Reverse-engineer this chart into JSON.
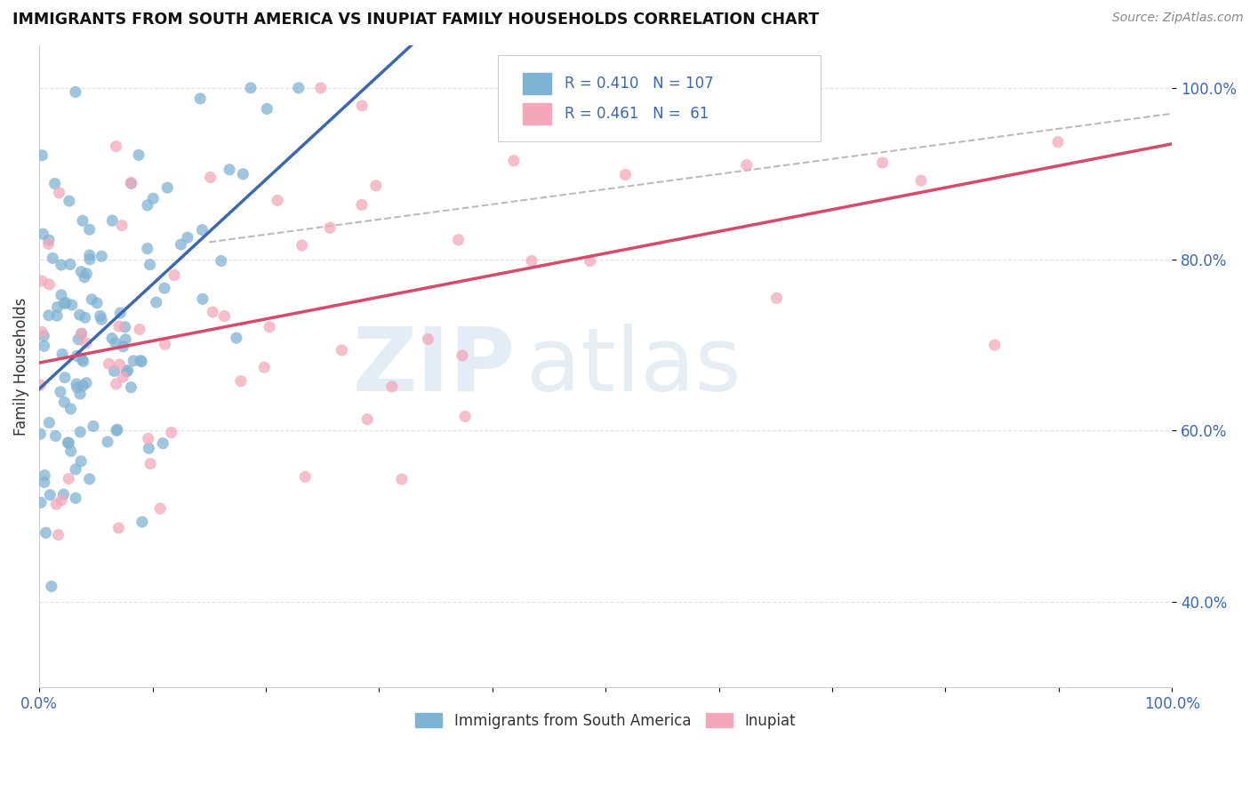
{
  "title": "IMMIGRANTS FROM SOUTH AMERICA VS INUPIAT FAMILY HOUSEHOLDS CORRELATION CHART",
  "source": "Source: ZipAtlas.com",
  "ylabel": "Family Households",
  "xlim": [
    0.0,
    1.0
  ],
  "ylim": [
    0.3,
    1.05
  ],
  "ytick_positions": [
    0.4,
    0.6,
    0.8,
    1.0
  ],
  "yticklabels": [
    "40.0%",
    "60.0%",
    "80.0%",
    "100.0%"
  ],
  "blue_color": "#7fb3d3",
  "pink_color": "#f4a7b9",
  "trend_blue": "#3a68b5",
  "trend_pink": "#d9496a",
  "dashed_gray": "#aaaaaa",
  "R_blue": 0.41,
  "N_blue": 107,
  "R_pink": 0.461,
  "N_pink": 61,
  "legend_label_blue": "Immigrants from South America",
  "legend_label_pink": "Inupiat",
  "watermark_zip": "ZIP",
  "watermark_atlas": "atlas",
  "background_color": "#ffffff",
  "grid_color": "#e0e0e0"
}
